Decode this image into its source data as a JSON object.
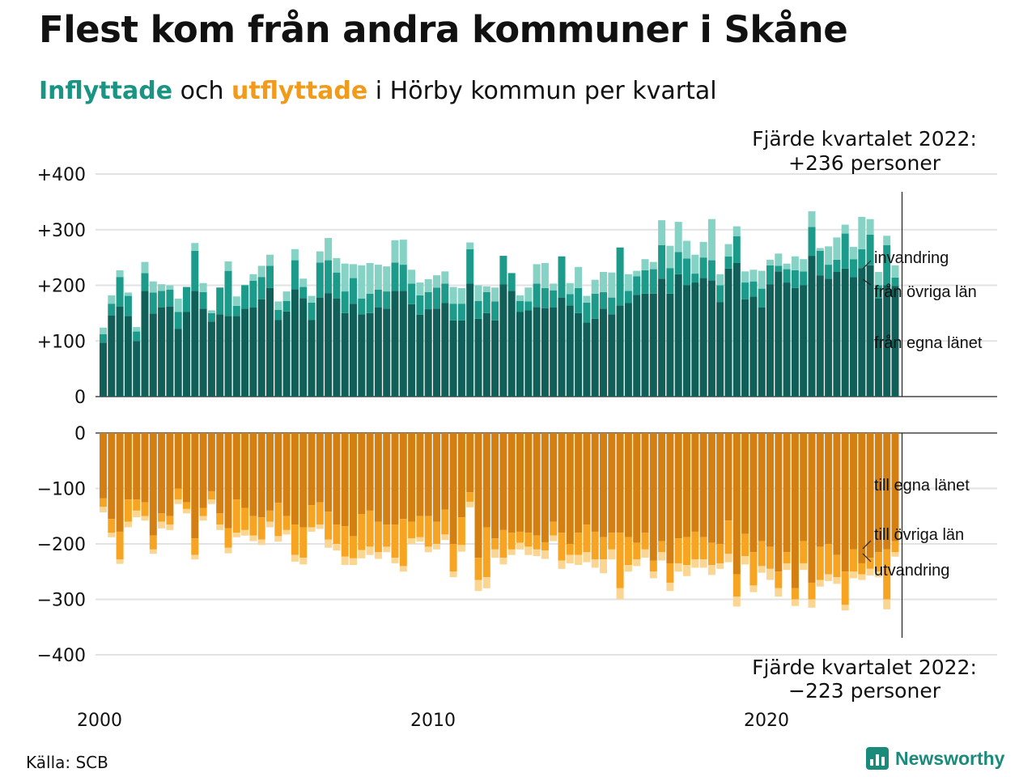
{
  "title": "Flest kom från andra kommuner i Skåne",
  "subtitle": {
    "in_word": "Inflyttade",
    "and_word": " och ",
    "out_word": "utflyttade",
    "rest": " i Hörby kommun per kvartal"
  },
  "source": "Källa: SCB",
  "logo_text": "Newsworthy",
  "colors": {
    "in_dark": "#105f58",
    "in_mid": "#1d9b8a",
    "in_light": "#86d3c6",
    "out_dark": "#d47f12",
    "out_mid": "#f7a423",
    "out_light": "#fbd592",
    "grid": "#e2e2e2"
  },
  "chart_data": {
    "type": "bar",
    "stacked": true,
    "x_start": "2000 Q1",
    "x_ticks": [
      "2000",
      "2010",
      "2020"
    ],
    "top_panel": {
      "ylim": [
        0,
        400
      ],
      "y_ticks": [
        "+400",
        "+300",
        "+200",
        "+100",
        "0"
      ],
      "annotation_line1": "Fjärde kvartalet 2022:",
      "annotation_line2": "+236 personer",
      "series": [
        {
          "name": "från egna länet",
          "values": [
            97,
            146,
            162,
            145,
            100,
            190,
            149,
            160,
            162,
            122,
            152,
            190,
            158,
            135,
            148,
            145,
            145,
            158,
            160,
            175,
            195,
            138,
            153,
            193,
            177,
            138,
            178,
            186,
            176,
            150,
            167,
            148,
            150,
            160,
            158,
            190,
            190,
            166,
            147,
            157,
            158,
            168,
            137,
            137,
            203,
            140,
            150,
            137,
            202,
            190,
            152,
            155,
            161,
            159,
            160,
            178,
            164,
            150,
            133,
            140,
            158,
            148,
            164,
            168,
            183,
            185,
            185,
            212,
            185,
            220,
            200,
            205,
            213,
            209,
            170,
            230,
            240,
            175,
            180,
            160,
            202,
            225,
            205,
            195,
            200,
            253,
            218,
            212,
            224,
            230,
            215,
            231,
            236,
            176,
            200,
            199
          ],
          "y_lab": "från egna länet"
        },
        {
          "name": "från övriga län",
          "values": [
            15,
            21,
            53,
            36,
            17,
            32,
            38,
            30,
            30,
            30,
            45,
            72,
            30,
            15,
            48,
            81,
            18,
            42,
            48,
            40,
            40,
            18,
            19,
            52,
            20,
            31,
            63,
            59,
            47,
            39,
            46,
            28,
            35,
            32,
            31,
            51,
            47,
            37,
            35,
            31,
            38,
            35,
            30,
            30,
            62,
            32,
            38,
            34,
            51,
            32,
            20,
            16,
            42,
            36,
            31,
            74,
            20,
            45,
            36,
            45,
            30,
            30,
            104,
            22,
            33,
            42,
            44,
            60,
            46,
            40,
            48,
            16,
            37,
            36,
            30,
            22,
            48,
            30,
            27,
            34,
            34,
            10,
            24,
            32,
            25,
            52,
            44,
            25,
            22,
            63,
            32,
            34,
            55,
            24,
            72,
            15
          ],
          "y_lab": "från övriga län"
        },
        {
          "name": "invandring",
          "values": [
            12,
            15,
            12,
            6,
            8,
            20,
            20,
            12,
            8,
            24,
            0,
            14,
            16,
            5,
            0,
            17,
            17,
            1,
            12,
            20,
            20,
            15,
            17,
            20,
            15,
            12,
            20,
            40,
            26,
            50,
            25,
            60,
            55,
            45,
            45,
            40,
            45,
            25,
            23,
            23,
            22,
            22,
            30,
            28,
            12,
            28,
            10,
            25,
            0,
            0,
            10,
            25,
            35,
            45,
            12,
            0,
            20,
            38,
            12,
            25,
            36,
            45,
            0,
            30,
            10,
            20,
            13,
            45,
            40,
            54,
            32,
            34,
            28,
            74,
            20,
            22,
            18,
            20,
            21,
            32,
            10,
            22,
            10,
            25,
            22,
            28,
            5,
            33,
            40,
            16,
            22,
            58,
            28,
            24,
            17,
            22
          ],
          "y_lab": "invandring"
        }
      ]
    },
    "bottom_panel": {
      "ylim": [
        -400,
        0
      ],
      "y_ticks": [
        "0",
        "−100",
        "−200",
        "−300",
        "−400"
      ],
      "annotation_line1": "Fjärde kvartalet 2022:",
      "annotation_line2": "−223 personer",
      "series": [
        {
          "name": "till egna länet",
          "values": [
            -118,
            -155,
            -178,
            -120,
            -120,
            -125,
            -185,
            -145,
            -150,
            -100,
            -125,
            -190,
            -135,
            -105,
            -145,
            -172,
            -120,
            -135,
            -150,
            -152,
            -140,
            -126,
            -150,
            -165,
            -170,
            -130,
            -125,
            -142,
            -165,
            -168,
            -186,
            -146,
            -140,
            -160,
            -165,
            -165,
            -155,
            -160,
            -150,
            -150,
            -160,
            -138,
            -200,
            -152,
            -107,
            -225,
            -170,
            -190,
            -175,
            -180,
            -178,
            -180,
            -185,
            -197,
            -160,
            -180,
            -200,
            -180,
            -165,
            -178,
            -188,
            -180,
            -180,
            -188,
            -198,
            -180,
            -230,
            -195,
            -235,
            -190,
            -188,
            -178,
            -188,
            -198,
            -200,
            -158,
            -255,
            -182,
            -215,
            -195,
            -205,
            -250,
            -215,
            -280,
            -195,
            -270,
            -205,
            -200,
            -220,
            -250,
            -210,
            -235,
            -225,
            -215,
            -210,
            -195
          ],
          "y_lab": "till egna länet"
        },
        {
          "name": "till övriga län",
          "values": [
            -15,
            -25,
            -50,
            -40,
            -20,
            -25,
            -25,
            -15,
            -15,
            -20,
            -12,
            -30,
            -15,
            -15,
            -20,
            -35,
            -60,
            -40,
            -35,
            -40,
            -20,
            -60,
            -25,
            -55,
            -55,
            -40,
            -40,
            -50,
            -35,
            -55,
            -40,
            -65,
            -65,
            -55,
            -40,
            -60,
            -85,
            -30,
            -38,
            -55,
            -40,
            -45,
            -50,
            -50,
            -17,
            -40,
            -90,
            -20,
            -50,
            -30,
            -20,
            -25,
            -25,
            -15,
            -25,
            -50,
            -20,
            -40,
            -50,
            -50,
            -40,
            -30,
            -100,
            -50,
            -30,
            -30,
            -20,
            -20,
            -35,
            -45,
            -50,
            -50,
            -40,
            -40,
            -35,
            -60,
            -40,
            -40,
            -60,
            -45,
            -40,
            -30,
            -20,
            -20,
            -40,
            -30,
            -60,
            -55,
            -40,
            -60,
            -40,
            -20,
            -20,
            -35,
            -90,
            -20
          ],
          "y_lab": "till övriga län"
        },
        {
          "name": "utvandring",
          "values": [
            -10,
            -8,
            -8,
            -10,
            -12,
            -8,
            -8,
            -12,
            -10,
            -8,
            -8,
            -8,
            -8,
            -8,
            -10,
            -10,
            -8,
            -10,
            -10,
            -10,
            -10,
            -10,
            -8,
            -12,
            -12,
            -8,
            -8,
            -15,
            -12,
            -15,
            -12,
            -15,
            -15,
            -12,
            -10,
            -10,
            -10,
            -10,
            -8,
            -10,
            -10,
            -10,
            -10,
            -12,
            -10,
            -20,
            -20,
            -15,
            -12,
            -10,
            -12,
            -15,
            -12,
            -15,
            -10,
            -15,
            -15,
            -18,
            -18,
            -15,
            -25,
            -18,
            -20,
            -12,
            -12,
            -15,
            -12,
            -15,
            -15,
            -15,
            -20,
            -15,
            -15,
            -18,
            -10,
            -15,
            -18,
            -15,
            -12,
            -12,
            -20,
            -15,
            -12,
            -12,
            -12,
            -15,
            -12,
            -12,
            -12,
            -10,
            -12,
            -10,
            -12,
            -10,
            -18,
            -8
          ],
          "y_lab": "utvandring"
        }
      ]
    }
  }
}
